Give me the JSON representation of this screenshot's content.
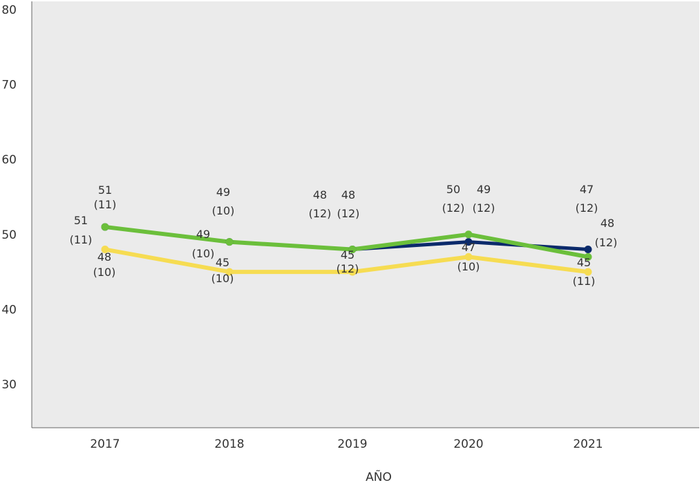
{
  "chart_data": {
    "type": "line",
    "xlabel": "AÑO",
    "ylabel": "",
    "ylim": [
      25,
      80
    ],
    "yticks": [
      30,
      40,
      50,
      60,
      70,
      80
    ],
    "categories": [
      "2017",
      "2018",
      "2019",
      "2020",
      "2021"
    ],
    "grid": false,
    "series": [
      {
        "color": "#6bbf3b",
        "values": [
          51,
          49,
          48,
          50,
          47
        ],
        "labels": [
          "51",
          "49",
          "48",
          "50",
          "47"
        ],
        "sublabels": [
          "(11)",
          "(10)",
          "(12)",
          "(12)",
          "(12)"
        ]
      },
      {
        "color": "#0b2a6b",
        "values": [
          51,
          49,
          48,
          49,
          48
        ],
        "labels": [
          "51",
          "49",
          "48",
          "49",
          "48"
        ],
        "sublabels": [
          "(11)",
          "(10)",
          "(12)",
          "(12)",
          "(12)"
        ]
      },
      {
        "color": "#f6dc52",
        "values": [
          48,
          45,
          45,
          47,
          45
        ],
        "labels": [
          "48",
          "45",
          "45",
          "47",
          "45"
        ],
        "sublabels": [
          "(10)",
          "(10)",
          "(12)",
          "(10)",
          "(11)"
        ]
      }
    ]
  }
}
